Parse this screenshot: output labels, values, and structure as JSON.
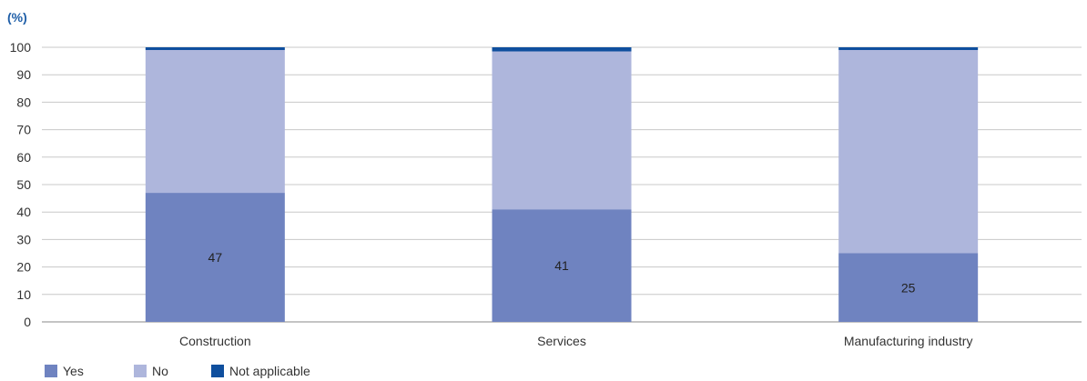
{
  "chart_data": {
    "type": "bar",
    "stacked": true,
    "ylabel": "(%)",
    "ylim": [
      0,
      100
    ],
    "yticks": [
      0,
      10,
      20,
      30,
      40,
      50,
      60,
      70,
      80,
      90,
      100
    ],
    "grid": true,
    "legend_position": "bottom-left",
    "categories": [
      "Construction",
      "Services",
      "Manufacturing industry"
    ],
    "series": [
      {
        "name": "Yes",
        "values": [
          47,
          41,
          25
        ],
        "color": "#6f83c0",
        "labels": [
          "47",
          "41",
          "25"
        ]
      },
      {
        "name": "No",
        "values": [
          52,
          57.5,
          74
        ],
        "color": "#aeb6dc"
      },
      {
        "name": "Not applicable",
        "values": [
          1,
          1.5,
          1
        ],
        "color": "#0f4f9e"
      }
    ]
  }
}
